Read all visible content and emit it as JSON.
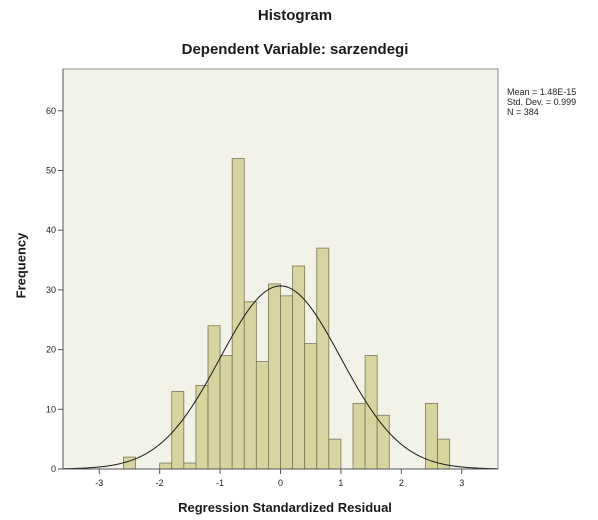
{
  "chart_data": {
    "type": "bar",
    "title": "Histogram",
    "subtitle": "Dependent Variable: sarzendegi",
    "xlabel": "Regression Standardized Residual",
    "ylabel": "Frequency",
    "stats": [
      "Mean = 1.48E-15",
      "Std. Dev. = 0.999",
      "N = 384"
    ],
    "xlim": [
      -3.6,
      3.6
    ],
    "ylim": [
      0,
      67
    ],
    "x_ticks": [
      "-3",
      "-2",
      "-1",
      "0",
      "1",
      "2",
      "3"
    ],
    "x_tick_values": [
      -3,
      -2,
      -1,
      0,
      1,
      2,
      3
    ],
    "y_ticks": [
      "0",
      "10",
      "20",
      "30",
      "40",
      "50",
      "60"
    ],
    "y_tick_values": [
      0,
      10,
      20,
      30,
      40,
      50,
      60
    ],
    "bin_width": 0.2,
    "bins": [
      {
        "start": -2.6,
        "value": 2
      },
      {
        "start": -2.0,
        "value": 1
      },
      {
        "start": -1.8,
        "value": 13
      },
      {
        "start": -1.6,
        "value": 1
      },
      {
        "start": -1.4,
        "value": 14
      },
      {
        "start": -1.2,
        "value": 24
      },
      {
        "start": -1.0,
        "value": 19
      },
      {
        "start": -0.8,
        "value": 52
      },
      {
        "start": -0.6,
        "value": 28
      },
      {
        "start": -0.4,
        "value": 18
      },
      {
        "start": -0.2,
        "value": 31
      },
      {
        "start": 0.0,
        "value": 29
      },
      {
        "start": 0.2,
        "value": 34
      },
      {
        "start": 0.4,
        "value": 21
      },
      {
        "start": 0.6,
        "value": 37
      },
      {
        "start": 0.8,
        "value": 5
      },
      {
        "start": 1.2,
        "value": 11
      },
      {
        "start": 1.4,
        "value": 19
      },
      {
        "start": 1.6,
        "value": 9
      },
      {
        "start": 2.4,
        "value": 11
      },
      {
        "start": 2.6,
        "value": 5
      }
    ],
    "normal_curve": {
      "mean": 0.0,
      "sd": 0.999,
      "n": 384
    },
    "colors": {
      "bar_fill": "#d8d4a0",
      "bar_stroke": "#7a7658",
      "plot_bg": "#f2f2e8",
      "curve": "#1a1a1a"
    }
  }
}
